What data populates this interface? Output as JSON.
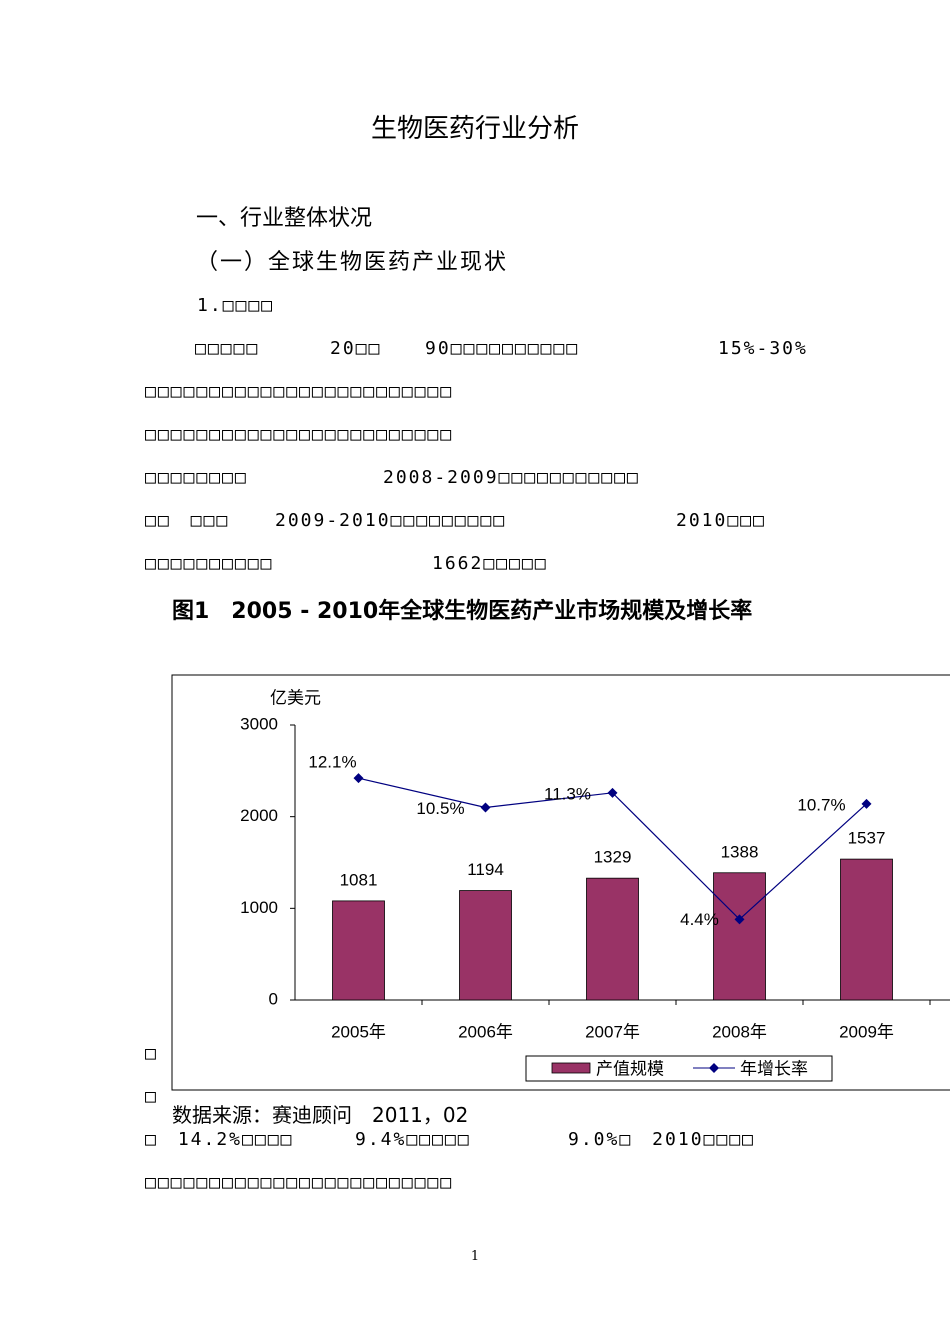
{
  "title": "生物医药行业分析",
  "headings": [
    "一、行业整体状况",
    "（一）全球生物医药产业现状"
  ],
  "lines": [
    [
      "1.□□□□"
    ],
    [
      "□□□□□",
      "20□□",
      "90□□□□□□□□□□",
      "15%-30%"
    ],
    [
      "□□□□□□□□□□□□□□□□□□□□□□□□"
    ],
    [
      "□□□□□□□□□□□□□□□□□□□□□□□□"
    ],
    [
      "□□□□□□□□",
      "2008-2009□□□□□□□□□□□"
    ],
    [
      "□□　□□□",
      "2009-2010□□□□□□□□□",
      "2010□□□"
    ],
    [
      "□□□□□□□□□□",
      "1662□□□□□"
    ]
  ],
  "figure_caption": "图1　2005 - 2010年全球生物医药产业市场规模及增长率",
  "chart_data": {
    "type": "bar_line",
    "y_label": "亿美元",
    "categories": [
      "2005年",
      "2006年",
      "2007年",
      "2008年",
      "2009年"
    ],
    "series": [
      {
        "name": "产值规模",
        "color": "#993366",
        "values": [
          1081,
          1194,
          1329,
          1388,
          1537
        ]
      },
      {
        "name": "年增长率",
        "color": "#000080",
        "axis": "y2",
        "values": [
          12.1,
          10.5,
          11.3,
          4.4,
          10.7
        ],
        "value_labels": [
          "12.1%",
          "10.5%",
          "11.3%",
          "4.4%",
          "10.7%"
        ]
      }
    ],
    "ylim": [
      0,
      3000
    ],
    "yticks": [
      0,
      1000,
      2000,
      3000
    ],
    "y2lim": [
      0,
      15
    ]
  },
  "side_marks": [
    "□",
    "□"
  ],
  "source": "数据来源：赛迪顾问　2011，02",
  "after_lines": [
    [
      "□　14.2%□□□□",
      "9.4%□□□□□",
      "9.0%□　2010□□□□"
    ],
    [
      "□□□□□□□□□□□□□□□□□□□□□□□□"
    ]
  ],
  "page_number": "1"
}
